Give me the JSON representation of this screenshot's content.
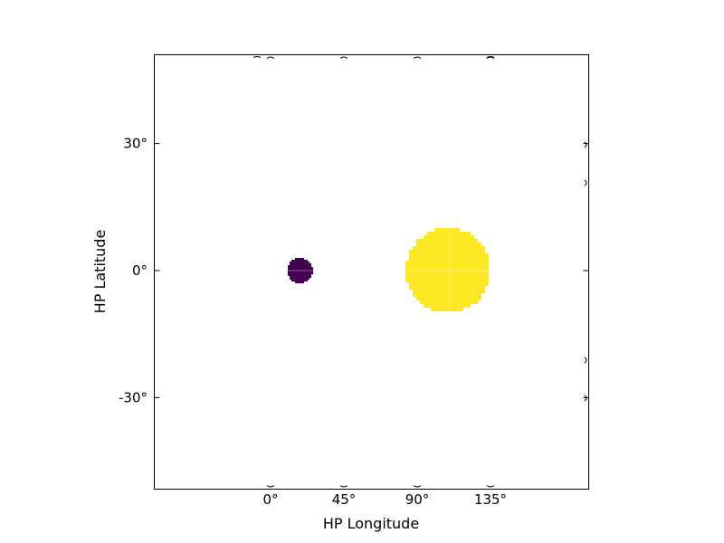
{
  "chart_data": {
    "type": "scatter",
    "title": "",
    "xlabel": "HP Longitude",
    "ylabel": "HP Latitude",
    "x_ticks": [
      {
        "value": 0,
        "label": "0°"
      },
      {
        "value": 45,
        "label": "45°"
      },
      {
        "value": 90,
        "label": "90°"
      },
      {
        "value": 135,
        "label": "135°"
      }
    ],
    "y_ticks": [
      {
        "value": 30,
        "label": "30°"
      },
      {
        "value": 0,
        "label": "0°"
      },
      {
        "value": -30,
        "label": "-30°"
      }
    ],
    "grid": false,
    "colormap": "viridis",
    "features": [
      {
        "name": "small-disk",
        "lon": 18,
        "lat": 0,
        "radius_deg": 3,
        "color": "#440154"
      },
      {
        "name": "large-disk",
        "lon": 109,
        "lat": 0,
        "radius_deg": 10,
        "color": "#fde725"
      }
    ]
  }
}
